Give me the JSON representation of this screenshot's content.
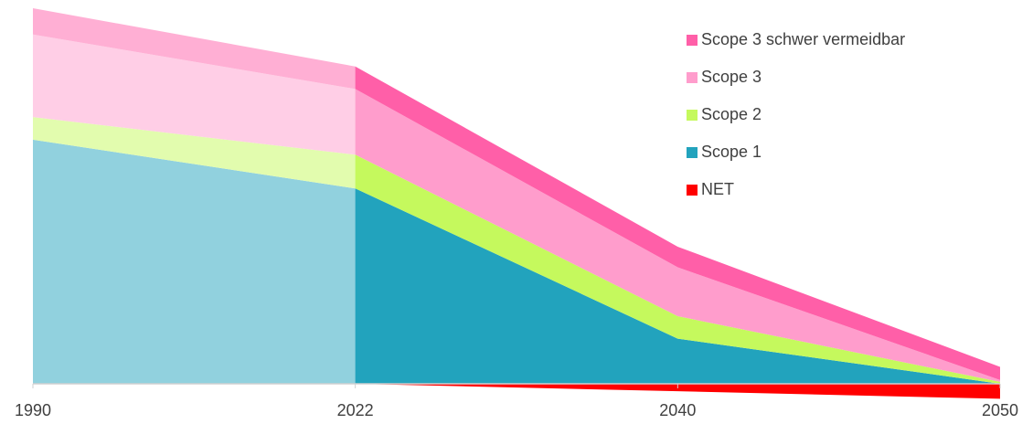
{
  "chart_data": {
    "type": "stacked_area",
    "categories": [
      "1990",
      "2022",
      "2040",
      "2050"
    ],
    "series": [
      {
        "name": "NET",
        "color": "#ff0000",
        "values": [
          0,
          0,
          -2,
          -4
        ]
      },
      {
        "name": "Scope 1",
        "color": "#22a3bd",
        "values": [
          65,
          52,
          12,
          0
        ]
      },
      {
        "name": "Scope 2",
        "color": "#c5f95d",
        "values": [
          6,
          9,
          6,
          0.5
        ]
      },
      {
        "name": "Scope 3",
        "color": "#ff9dcc",
        "values": [
          22,
          17.5,
          13,
          0.5
        ]
      },
      {
        "name": "Scope 3 schwer vermeidbar",
        "color": "#ff5fa8",
        "values": [
          7,
          6,
          5.5,
          3.5
        ]
      }
    ],
    "ylim": [
      -5,
      100
    ],
    "legend": "top-right"
  }
}
